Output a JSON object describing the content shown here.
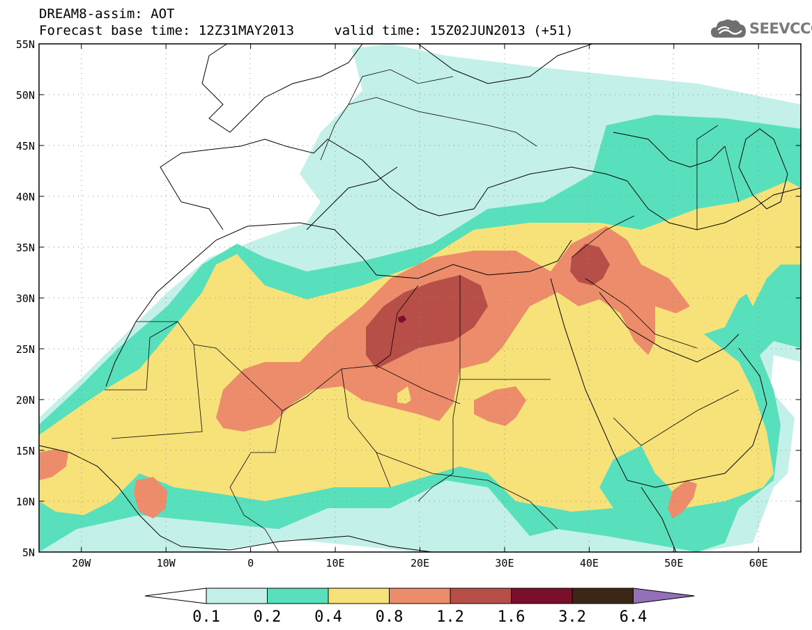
{
  "header": {
    "title": "DREAM8-assim: AOT",
    "base_time_label": "Forecast base time: 12Z31MAY2013",
    "valid_time_label": "valid time: 15Z02JUN2013 (+51)"
  },
  "logo": {
    "icon": "cloud-icon",
    "text": "SEEVCCC"
  },
  "map": {
    "lat_labels": [
      "55N",
      "50N",
      "45N",
      "40N",
      "35N",
      "30N",
      "25N",
      "20N",
      "15N",
      "10N",
      "5N"
    ],
    "lon_labels": [
      "20W",
      "10W",
      "0",
      "10E",
      "20E",
      "30E",
      "40E",
      "50E",
      "60E"
    ],
    "lat_range": [
      5,
      55
    ],
    "lon_range": [
      -25,
      65
    ],
    "grid": "dotted"
  },
  "colorbar": {
    "ticks": [
      "0.1",
      "0.2",
      "0.4",
      "0.8",
      "1.2",
      "1.6",
      "3.2",
      "6.4"
    ],
    "colors": [
      "#c4f0ea",
      "#58e0bc",
      "#f7e27a",
      "#ec8c6a",
      "#b74e47",
      "#7b0e2a",
      "#3c2716",
      "#9370b8"
    ]
  }
}
